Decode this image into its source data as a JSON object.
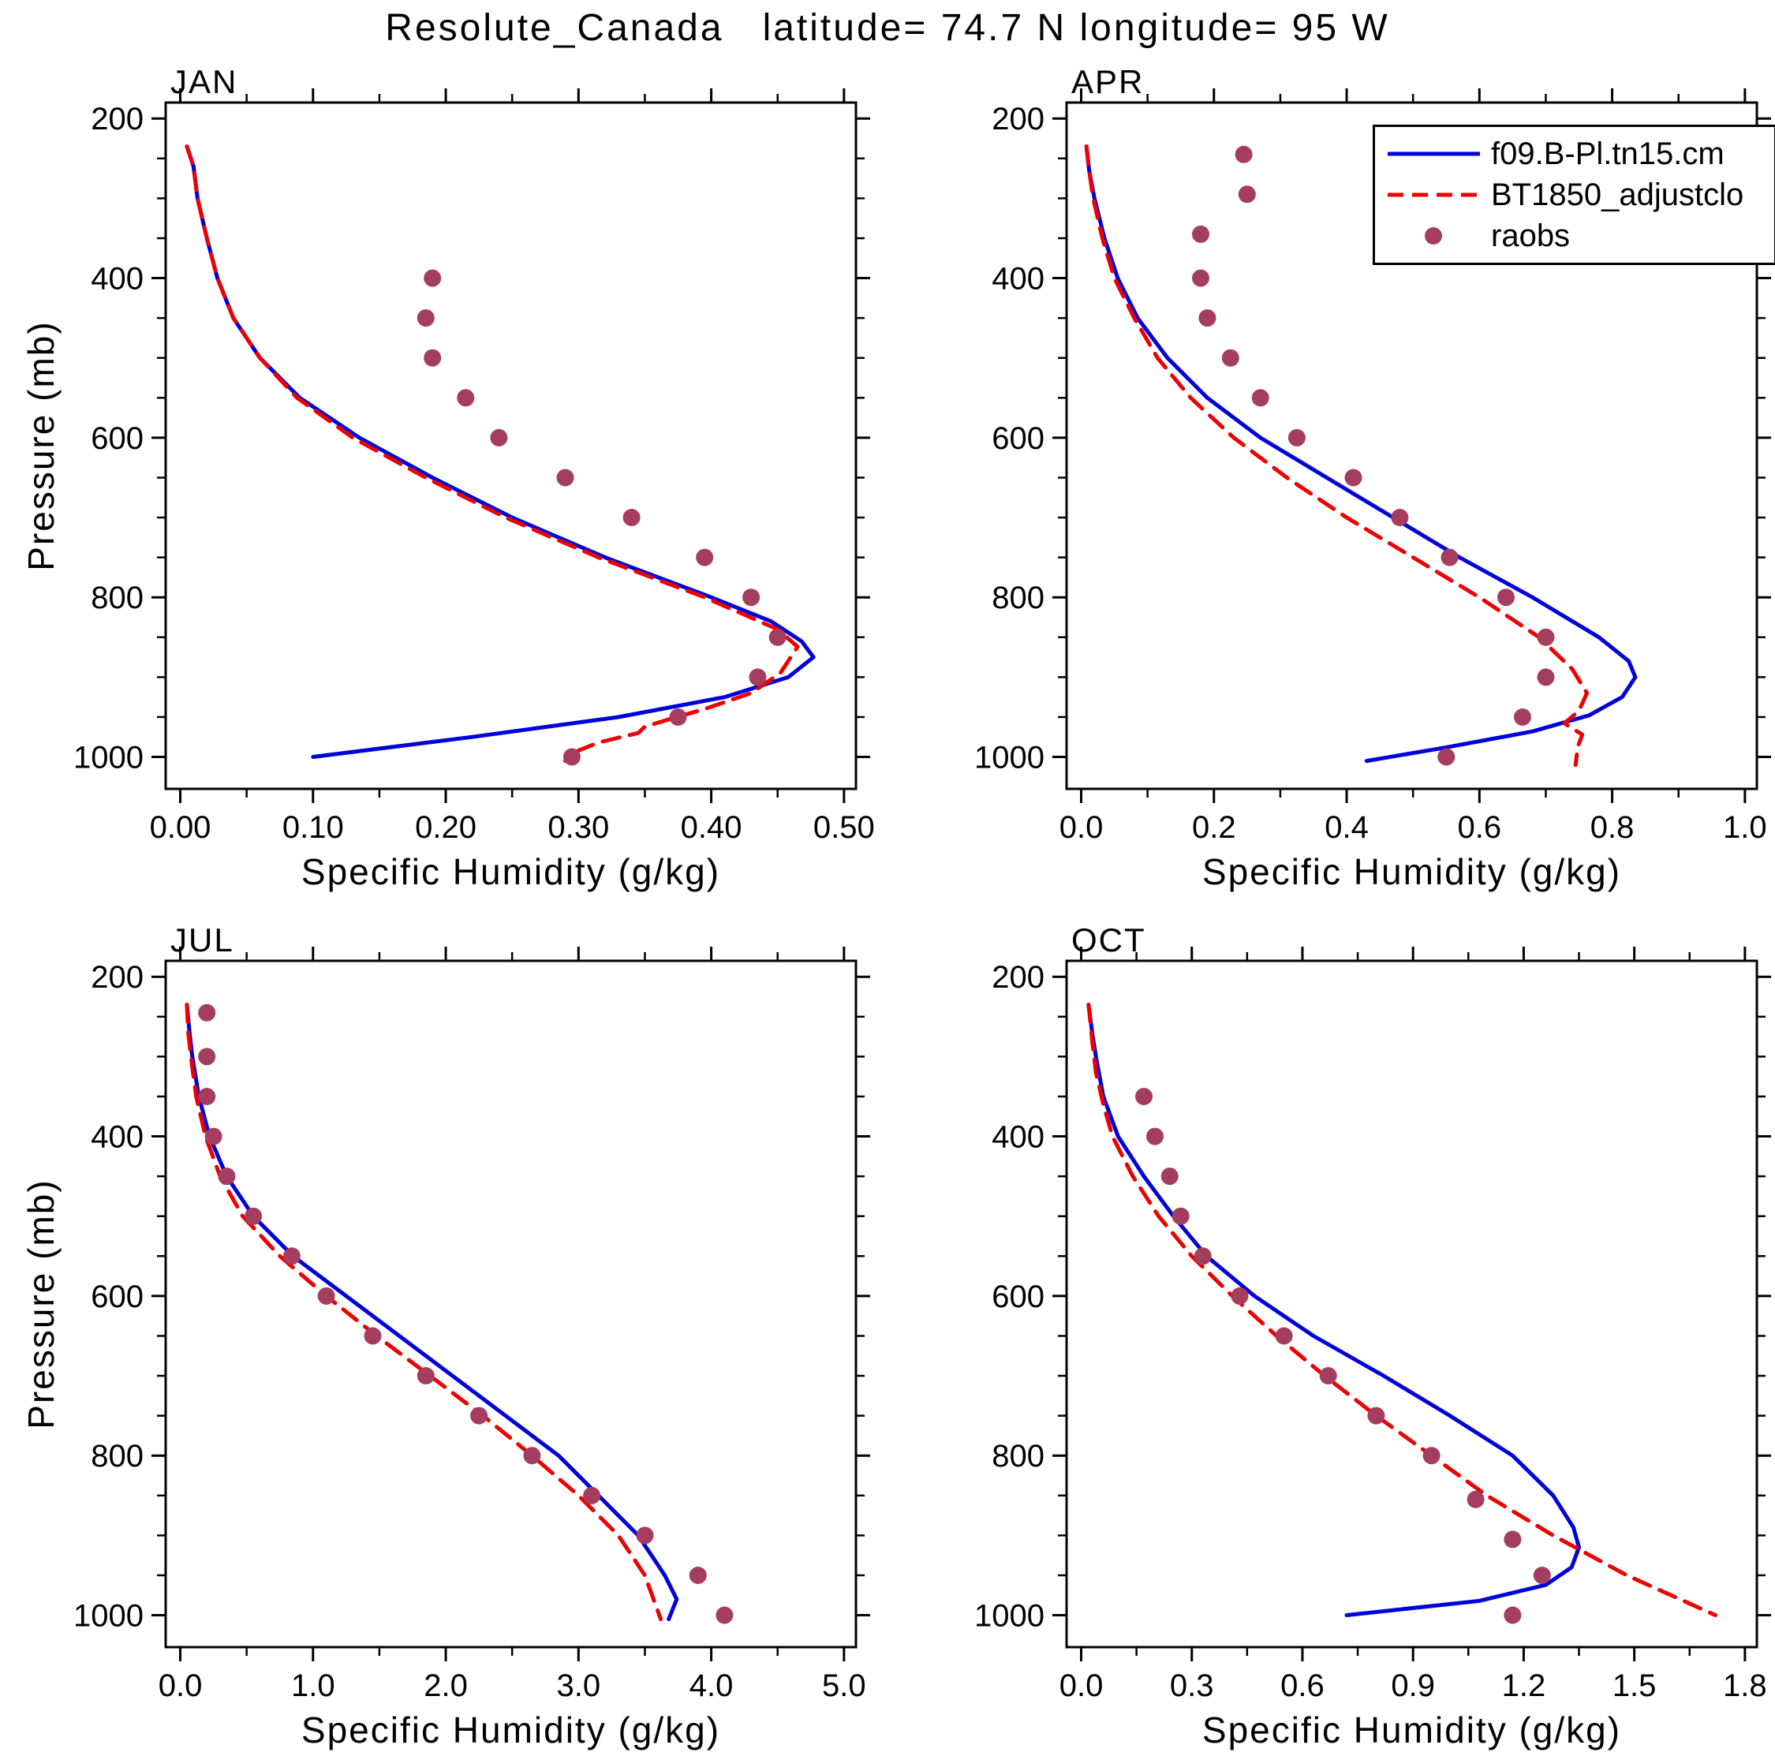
{
  "title": "Resolute_Canada   latitude= 74.7 N longitude= 95 W",
  "legend": {
    "entries": [
      {
        "label": "f09.B-Pl.tn15.cm",
        "style": "solid",
        "color": "#0000dd"
      },
      {
        "label": "BT1850_adjustclo",
        "style": "dashed",
        "color": "#ee0000"
      },
      {
        "label": "raobs",
        "style": "dots",
        "color": "#a53d5f"
      }
    ]
  },
  "chart_data": [
    {
      "type": "line",
      "panel": "JAN",
      "xlabel": "Specific Humidity (g/kg)",
      "ylabel": "Pressure (mb)",
      "xticks": [
        0.0,
        0.1,
        0.2,
        0.3,
        0.4,
        0.5
      ],
      "xtick_labels": [
        "0.00",
        "0.10",
        "0.20",
        "0.30",
        "0.40",
        "0.50"
      ],
      "yticks": [
        200,
        400,
        600,
        800,
        1000
      ],
      "ytick_labels": [
        "200",
        "400",
        "600",
        "800",
        "1000"
      ],
      "xlim": [
        0.0,
        0.5
      ],
      "ylim": [
        200,
        1000
      ],
      "y_inverted": true,
      "grid": false,
      "series": [
        {
          "name": "f09.B-Pl.tn15.cm",
          "style": "solid",
          "color": "#0000dd",
          "points": [
            [
              0.005,
              235
            ],
            [
              0.01,
              260
            ],
            [
              0.013,
              300
            ],
            [
              0.02,
              350
            ],
            [
              0.028,
              400
            ],
            [
              0.04,
              450
            ],
            [
              0.06,
              500
            ],
            [
              0.09,
              550
            ],
            [
              0.135,
              600
            ],
            [
              0.19,
              650
            ],
            [
              0.25,
              700
            ],
            [
              0.32,
              750
            ],
            [
              0.4,
              800
            ],
            [
              0.445,
              830
            ],
            [
              0.468,
              855
            ],
            [
              0.477,
              875
            ],
            [
              0.458,
              900
            ],
            [
              0.41,
              925
            ],
            [
              0.33,
              950
            ],
            [
              0.22,
              975
            ],
            [
              0.1,
              1000
            ]
          ]
        },
        {
          "name": "BT1850_adjustclo",
          "style": "dashed",
          "color": "#ee0000",
          "points": [
            [
              0.005,
              235
            ],
            [
              0.01,
              260
            ],
            [
              0.013,
              300
            ],
            [
              0.02,
              350
            ],
            [
              0.028,
              400
            ],
            [
              0.04,
              450
            ],
            [
              0.06,
              500
            ],
            [
              0.088,
              550
            ],
            [
              0.13,
              600
            ],
            [
              0.185,
              650
            ],
            [
              0.245,
              700
            ],
            [
              0.315,
              750
            ],
            [
              0.395,
              800
            ],
            [
              0.45,
              840
            ],
            [
              0.465,
              862
            ],
            [
              0.452,
              895
            ],
            [
              0.43,
              920
            ],
            [
              0.395,
              940
            ],
            [
              0.37,
              952
            ],
            [
              0.35,
              962
            ],
            [
              0.345,
              970
            ],
            [
              0.315,
              982
            ],
            [
              0.3,
              992
            ],
            [
              0.29,
              1005
            ]
          ]
        },
        {
          "name": "raobs",
          "style": "dots",
          "color": "#a53d5f",
          "points": [
            [
              0.19,
              400
            ],
            [
              0.185,
              450
            ],
            [
              0.19,
              500
            ],
            [
              0.215,
              550
            ],
            [
              0.24,
              600
            ],
            [
              0.29,
              650
            ],
            [
              0.34,
              700
            ],
            [
              0.395,
              750
            ],
            [
              0.43,
              800
            ],
            [
              0.45,
              850
            ],
            [
              0.435,
              900
            ],
            [
              0.375,
              950
            ],
            [
              0.295,
              1000
            ]
          ]
        }
      ]
    },
    {
      "type": "line",
      "panel": "APR",
      "xlabel": "Specific Humidity (g/kg)",
      "ylabel": "Pressure (mb)",
      "xticks": [
        0.0,
        0.2,
        0.4,
        0.6,
        0.8,
        1.0
      ],
      "xtick_labels": [
        "0.0",
        "0.2",
        "0.4",
        "0.6",
        "0.8",
        "1.0"
      ],
      "yticks": [
        200,
        400,
        600,
        800,
        1000
      ],
      "ytick_labels": [
        "200",
        "400",
        "600",
        "800",
        "1000"
      ],
      "xlim": [
        0.0,
        1.0
      ],
      "ylim": [
        200,
        1000
      ],
      "y_inverted": true,
      "grid": false,
      "series": [
        {
          "name": "f09.B-Pl.tn15.cm",
          "style": "solid",
          "color": "#0000dd",
          "points": [
            [
              0.008,
              235
            ],
            [
              0.012,
              265
            ],
            [
              0.02,
              300
            ],
            [
              0.035,
              350
            ],
            [
              0.055,
              400
            ],
            [
              0.085,
              450
            ],
            [
              0.13,
              500
            ],
            [
              0.19,
              550
            ],
            [
              0.27,
              600
            ],
            [
              0.37,
              650
            ],
            [
              0.47,
              700
            ],
            [
              0.57,
              750
            ],
            [
              0.68,
              800
            ],
            [
              0.78,
              850
            ],
            [
              0.825,
              880
            ],
            [
              0.835,
              900
            ],
            [
              0.815,
              925
            ],
            [
              0.765,
              948
            ],
            [
              0.68,
              968
            ],
            [
              0.55,
              988
            ],
            [
              0.43,
              1005
            ]
          ]
        },
        {
          "name": "BT1850_adjustclo",
          "style": "dashed",
          "color": "#ee0000",
          "points": [
            [
              0.008,
              235
            ],
            [
              0.012,
              265
            ],
            [
              0.018,
              300
            ],
            [
              0.032,
              350
            ],
            [
              0.05,
              400
            ],
            [
              0.08,
              450
            ],
            [
              0.115,
              500
            ],
            [
              0.165,
              550
            ],
            [
              0.23,
              600
            ],
            [
              0.31,
              650
            ],
            [
              0.4,
              700
            ],
            [
              0.5,
              750
            ],
            [
              0.6,
              800
            ],
            [
              0.69,
              850
            ],
            [
              0.74,
              890
            ],
            [
              0.762,
              920
            ],
            [
              0.75,
              942
            ],
            [
              0.728,
              958
            ],
            [
              0.755,
              972
            ],
            [
              0.748,
              988
            ],
            [
              0.745,
              1010
            ]
          ]
        },
        {
          "name": "raobs",
          "style": "dots",
          "color": "#a53d5f",
          "points": [
            [
              0.245,
              245
            ],
            [
              0.25,
              295
            ],
            [
              0.18,
              345
            ],
            [
              0.18,
              400
            ],
            [
              0.19,
              450
            ],
            [
              0.225,
              500
            ],
            [
              0.27,
              550
            ],
            [
              0.325,
              600
            ],
            [
              0.41,
              650
            ],
            [
              0.48,
              700
            ],
            [
              0.555,
              750
            ],
            [
              0.64,
              800
            ],
            [
              0.7,
              850
            ],
            [
              0.7,
              900
            ],
            [
              0.665,
              950
            ],
            [
              0.55,
              1000
            ]
          ]
        }
      ]
    },
    {
      "type": "line",
      "panel": "JUL",
      "xlabel": "Specific Humidity (g/kg)",
      "ylabel": "Pressure (mb)",
      "xticks": [
        0.0,
        1.0,
        2.0,
        3.0,
        4.0,
        5.0
      ],
      "xtick_labels": [
        "0.0",
        "1.0",
        "2.0",
        "3.0",
        "4.0",
        "5.0"
      ],
      "yticks": [
        200,
        400,
        600,
        800,
        1000
      ],
      "ytick_labels": [
        "200",
        "400",
        "600",
        "800",
        "1000"
      ],
      "xlim": [
        0.0,
        5.0
      ],
      "ylim": [
        200,
        1000
      ],
      "y_inverted": true,
      "grid": false,
      "series": [
        {
          "name": "f09.B-Pl.tn15.cm",
          "style": "solid",
          "color": "#0000dd",
          "points": [
            [
              0.05,
              235
            ],
            [
              0.07,
              270
            ],
            [
              0.09,
              300
            ],
            [
              0.14,
              350
            ],
            [
              0.22,
              400
            ],
            [
              0.35,
              450
            ],
            [
              0.55,
              500
            ],
            [
              0.85,
              550
            ],
            [
              1.25,
              600
            ],
            [
              1.65,
              650
            ],
            [
              2.05,
              700
            ],
            [
              2.45,
              750
            ],
            [
              2.85,
              800
            ],
            [
              3.15,
              850
            ],
            [
              3.45,
              900
            ],
            [
              3.65,
              950
            ],
            [
              3.74,
              980
            ],
            [
              3.68,
              1005
            ]
          ]
        },
        {
          "name": "BT1850_adjustclo",
          "style": "dashed",
          "color": "#ee0000",
          "points": [
            [
              0.05,
              235
            ],
            [
              0.06,
              270
            ],
            [
              0.08,
              300
            ],
            [
              0.12,
              350
            ],
            [
              0.19,
              400
            ],
            [
              0.3,
              450
            ],
            [
              0.47,
              500
            ],
            [
              0.75,
              550
            ],
            [
              1.1,
              600
            ],
            [
              1.48,
              650
            ],
            [
              1.88,
              700
            ],
            [
              2.28,
              750
            ],
            [
              2.65,
              800
            ],
            [
              3.0,
              850
            ],
            [
              3.3,
              900
            ],
            [
              3.5,
              950
            ],
            [
              3.62,
              1005
            ]
          ]
        },
        {
          "name": "raobs",
          "style": "dots",
          "color": "#a53d5f",
          "points": [
            [
              0.2,
              245
            ],
            [
              0.2,
              300
            ],
            [
              0.2,
              350
            ],
            [
              0.25,
              400
            ],
            [
              0.35,
              450
            ],
            [
              0.55,
              500
            ],
            [
              0.84,
              550
            ],
            [
              1.1,
              600
            ],
            [
              1.45,
              650
            ],
            [
              1.85,
              700
            ],
            [
              2.25,
              750
            ],
            [
              2.65,
              800
            ],
            [
              3.1,
              850
            ],
            [
              3.5,
              900
            ],
            [
              3.9,
              950
            ],
            [
              4.1,
              1000
            ]
          ]
        }
      ]
    },
    {
      "type": "line",
      "panel": "OCT",
      "xlabel": "Specific Humidity (g/kg)",
      "ylabel": "Pressure (mb)",
      "xticks": [
        0.0,
        0.3,
        0.6,
        0.9,
        1.2,
        1.5,
        1.8
      ],
      "xtick_labels": [
        "0.0",
        "0.3",
        "0.6",
        "0.9",
        "1.2",
        "1.5",
        "1.8"
      ],
      "yticks": [
        200,
        400,
        600,
        800,
        1000
      ],
      "ytick_labels": [
        "200",
        "400",
        "600",
        "800",
        "1000"
      ],
      "xlim": [
        0.0,
        1.8
      ],
      "ylim": [
        200,
        1000
      ],
      "y_inverted": true,
      "grid": false,
      "series": [
        {
          "name": "f09.B-Pl.tn15.cm",
          "style": "solid",
          "color": "#0000dd",
          "points": [
            [
              0.02,
              235
            ],
            [
              0.03,
              270
            ],
            [
              0.04,
              300
            ],
            [
              0.06,
              350
            ],
            [
              0.1,
              400
            ],
            [
              0.17,
              450
            ],
            [
              0.25,
              500
            ],
            [
              0.34,
              550
            ],
            [
              0.47,
              600
            ],
            [
              0.63,
              650
            ],
            [
              0.82,
              700
            ],
            [
              1.0,
              750
            ],
            [
              1.17,
              800
            ],
            [
              1.28,
              850
            ],
            [
              1.335,
              890
            ],
            [
              1.35,
              915
            ],
            [
              1.33,
              940
            ],
            [
              1.26,
              962
            ],
            [
              1.08,
              982
            ],
            [
              0.72,
              1000
            ]
          ]
        },
        {
          "name": "BT1850_adjustclo",
          "style": "dashed",
          "color": "#ee0000",
          "points": [
            [
              0.02,
              235
            ],
            [
              0.03,
              280
            ],
            [
              0.04,
              320
            ],
            [
              0.06,
              360
            ],
            [
              0.085,
              400
            ],
            [
              0.14,
              450
            ],
            [
              0.21,
              500
            ],
            [
              0.3,
              550
            ],
            [
              0.41,
              600
            ],
            [
              0.53,
              650
            ],
            [
              0.66,
              700
            ],
            [
              0.8,
              750
            ],
            [
              0.95,
              800
            ],
            [
              1.1,
              850
            ],
            [
              1.28,
              900
            ],
            [
              1.48,
              950
            ],
            [
              1.72,
              1000
            ]
          ]
        },
        {
          "name": "raobs",
          "style": "dots",
          "color": "#a53d5f",
          "points": [
            [
              0.17,
              350
            ],
            [
              0.2,
              400
            ],
            [
              0.24,
              450
            ],
            [
              0.27,
              500
            ],
            [
              0.33,
              550
            ],
            [
              0.43,
              600
            ],
            [
              0.55,
              650
            ],
            [
              0.67,
              700
            ],
            [
              0.8,
              750
            ],
            [
              0.95,
              800
            ],
            [
              1.07,
              855
            ],
            [
              1.17,
              905
            ],
            [
              1.25,
              950
            ],
            [
              1.17,
              1000
            ]
          ]
        }
      ]
    }
  ]
}
